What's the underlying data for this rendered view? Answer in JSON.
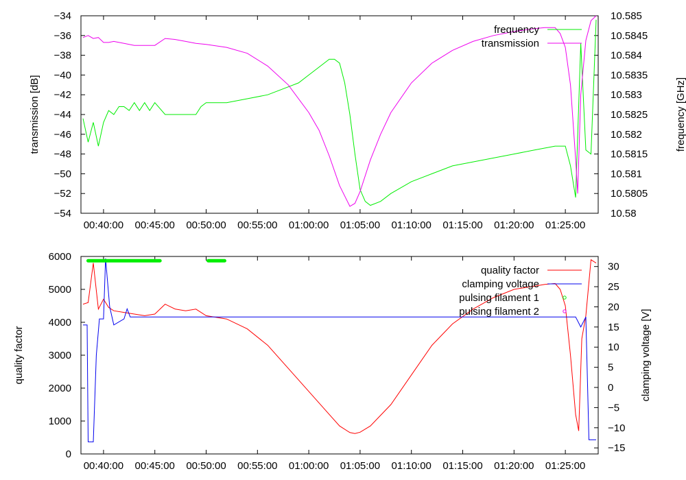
{
  "chart_data": [
    {
      "type": "line",
      "xlabel": "",
      "ylabel": "transmission [dB]",
      "y2label": "frequency [GHz]",
      "x_ticks": [
        "00:40:00",
        "00:45:00",
        "00:50:00",
        "00:55:00",
        "01:00:00",
        "01:05:00",
        "01:10:00",
        "01:15:00",
        "01:20:00",
        "01:25:00"
      ],
      "x_tick_minutes": [
        40,
        45,
        50,
        55,
        60,
        65,
        70,
        75,
        80,
        85
      ],
      "xlim_minutes": [
        37.8,
        88.2
      ],
      "ylim": [
        -54,
        -34
      ],
      "y_ticks": [
        -54,
        -52,
        -50,
        -48,
        -46,
        -44,
        -42,
        -40,
        -38,
        -36,
        -34
      ],
      "y2lim": [
        10.58,
        10.585
      ],
      "y2_ticks": [
        "10.58",
        "10.5805",
        "10.581",
        "10.5815",
        "10.582",
        "10.5825",
        "10.583",
        "10.5835",
        "10.584",
        "10.5845",
        "10.585"
      ],
      "legend_position": "top-right",
      "series": [
        {
          "name": "frequency",
          "axis": "y2",
          "color": "#00ee00",
          "x": [
            38,
            38.5,
            39,
            39.5,
            40,
            40.5,
            41,
            41.5,
            42,
            42.5,
            43,
            43.5,
            44,
            44.5,
            45,
            46,
            47,
            48,
            49,
            49.5,
            50,
            52,
            54,
            56,
            58,
            59,
            60,
            61,
            62,
            62.5,
            63,
            63.5,
            64,
            64.5,
            65,
            65.5,
            66,
            67,
            68,
            70,
            72,
            74,
            76,
            78,
            80,
            82,
            84,
            85,
            85.5,
            86,
            86.5,
            87,
            87.5,
            88
          ],
          "y": [
            10.5824,
            10.5818,
            10.5823,
            10.5817,
            10.5823,
            10.5826,
            10.5825,
            10.5827,
            10.5827,
            10.5826,
            10.5828,
            10.5826,
            10.5828,
            10.5826,
            10.5828,
            10.5825,
            10.5825,
            10.5825,
            10.5825,
            10.5827,
            10.5828,
            10.5828,
            10.5829,
            10.583,
            10.5832,
            10.5833,
            10.5835,
            10.5837,
            10.5839,
            10.5839,
            10.5838,
            10.5833,
            10.5825,
            10.5815,
            10.5806,
            10.5803,
            10.5802,
            10.5803,
            10.5805,
            10.5808,
            10.581,
            10.5812,
            10.5813,
            10.5814,
            10.5815,
            10.5816,
            10.5817,
            10.5817,
            10.5812,
            10.5804,
            10.5843,
            10.5816,
            10.5815,
            10.5849
          ]
        },
        {
          "name": "transmission",
          "axis": "y",
          "color": "#ee00ee",
          "x": [
            38,
            38.5,
            39,
            39.5,
            40,
            40.5,
            41,
            42,
            43,
            44,
            45,
            46,
            47,
            48,
            49,
            50,
            52,
            54,
            56,
            58,
            60,
            61,
            62,
            63,
            64,
            64.5,
            65,
            66,
            67,
            68,
            70,
            72,
            74,
            76,
            78,
            80,
            82,
            83,
            84,
            84.5,
            85,
            85.5,
            86,
            86.2,
            86.5,
            87,
            87.5,
            88
          ],
          "y": [
            -36.2,
            -36.0,
            -36.3,
            -36.2,
            -36.7,
            -36.7,
            -36.6,
            -36.8,
            -37.0,
            -37.0,
            -37.0,
            -36.3,
            -36.4,
            -36.6,
            -36.8,
            -36.9,
            -37.2,
            -37.8,
            -39.1,
            -41.0,
            -43.8,
            -45.6,
            -48.2,
            -51.2,
            -53.3,
            -53.0,
            -51.8,
            -48.6,
            -46.0,
            -43.8,
            -40.8,
            -38.8,
            -37.5,
            -36.6,
            -36.0,
            -35.6,
            -35.3,
            -35.2,
            -35.2,
            -35.8,
            -37.2,
            -41.0,
            -48.5,
            -52.0,
            -42.0,
            -36.5,
            -34.5,
            -34.0
          ]
        }
      ]
    },
    {
      "type": "line",
      "xlabel": "",
      "ylabel": "quality factor",
      "y2label": "clamping voltage [V]",
      "x_ticks": [
        "00:40:00",
        "00:45:00",
        "00:50:00",
        "00:55:00",
        "01:00:00",
        "01:05:00",
        "01:10:00",
        "01:15:00",
        "01:20:00",
        "01:25:00"
      ],
      "x_tick_minutes": [
        40,
        45,
        50,
        55,
        60,
        65,
        70,
        75,
        80,
        85
      ],
      "xlim_minutes": [
        37.8,
        88.2
      ],
      "ylim": [
        0,
        6000
      ],
      "y_ticks": [
        0,
        1000,
        2000,
        3000,
        4000,
        5000,
        6000
      ],
      "y2lim": [
        -16.5,
        32.5
      ],
      "y2_ticks": [
        -15,
        -10,
        -5,
        0,
        5,
        10,
        15,
        20,
        25,
        30
      ],
      "legend_position": "top-right",
      "series": [
        {
          "name": "quality factor",
          "axis": "y",
          "color": "#ff0000",
          "x": [
            38,
            38.5,
            39,
            39.5,
            40,
            40.5,
            41,
            42,
            43,
            44,
            45,
            46,
            47,
            48,
            49,
            50,
            52,
            54,
            56,
            58,
            60,
            62,
            63,
            64,
            64.5,
            65,
            66,
            68,
            70,
            72,
            74,
            76,
            78,
            80,
            82,
            83,
            84,
            84.5,
            85,
            85.5,
            86,
            86.3,
            86.6,
            87,
            87.5,
            88
          ],
          "y": [
            4550,
            4600,
            5800,
            4400,
            4700,
            4450,
            4350,
            4300,
            4250,
            4200,
            4250,
            4550,
            4400,
            4350,
            4400,
            4200,
            4100,
            3800,
            3300,
            2600,
            1900,
            1200,
            850,
            650,
            620,
            660,
            850,
            1500,
            2400,
            3300,
            3950,
            4400,
            4750,
            5000,
            5100,
            5150,
            5180,
            5000,
            4500,
            3000,
            1200,
            700,
            3500,
            4200,
            5900,
            5800
          ]
        },
        {
          "name": "clamping voltage",
          "axis": "y2",
          "color": "#0000ee",
          "x": [
            38,
            38.4,
            38.5,
            39,
            39.3,
            39.6,
            40,
            40.2,
            40.6,
            41,
            42,
            42.3,
            42.6,
            43,
            44,
            45,
            50,
            55,
            60,
            65,
            70,
            75,
            80,
            85,
            86,
            86.5,
            87,
            87.3,
            88
          ],
          "y": [
            15.5,
            15.5,
            -13.5,
            -13.5,
            8,
            17,
            17,
            32,
            20,
            15.5,
            17,
            19.5,
            17.5,
            17.5,
            17.5,
            17.5,
            17.5,
            17.5,
            17.5,
            17.5,
            17.5,
            17.5,
            17.5,
            17.5,
            17.5,
            15,
            17.5,
            -13,
            -13
          ]
        },
        {
          "name": "pulsing filament 1",
          "axis": "y",
          "color": "#00ee00",
          "x_ranges": [
            [
              38.5,
              45.5
            ],
            [
              50.2,
              51.8
            ]
          ],
          "y_level": 5870
        },
        {
          "name": "pulsing filament 2",
          "axis": "y",
          "color": "#ee00ee",
          "x_ranges": []
        }
      ]
    }
  ]
}
